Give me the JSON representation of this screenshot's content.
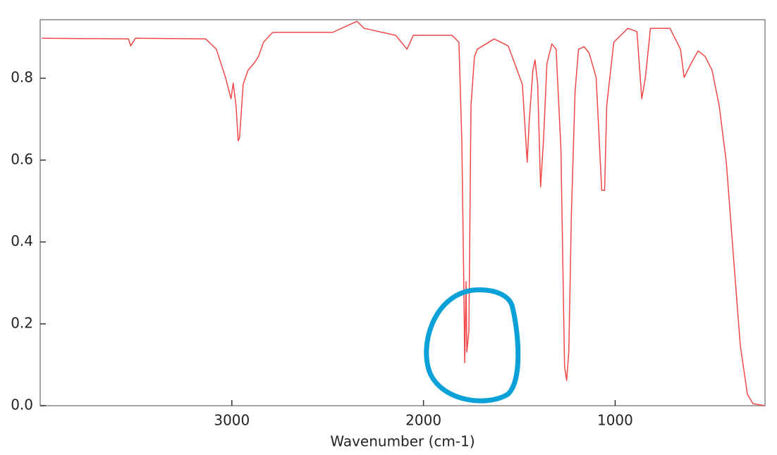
{
  "chart_data": {
    "type": "line",
    "xlabel": "Wavenumber (cm-1)",
    "x": [
      3991,
      3539,
      3528,
      3503,
      3136,
      3081,
      3033,
      3004,
      2993,
      2978,
      2967,
      2960,
      2941,
      2916,
      2879,
      2861,
      2835,
      2787,
      2475,
      2347,
      2310,
      2145,
      2086,
      2053,
      1851,
      1815,
      1800,
      1789,
      1785,
      1778,
      1774,
      1763,
      1752,
      1734,
      1719,
      1631,
      1558,
      1484,
      1459,
      1448,
      1429,
      1418,
      1404,
      1389,
      1374,
      1356,
      1330,
      1308,
      1283,
      1264,
      1253,
      1242,
      1228,
      1209,
      1191,
      1162,
      1136,
      1099,
      1070,
      1055,
      1044,
      1007,
      934,
      886,
      861,
      842,
      816,
      714,
      659,
      640,
      604,
      567,
      530,
      494,
      457,
      420,
      384,
      347,
      310,
      281,
      218
    ],
    "values": [
      0.898,
      0.896,
      0.879,
      0.898,
      0.896,
      0.871,
      0.802,
      0.75,
      0.788,
      0.733,
      0.647,
      0.655,
      0.785,
      0.819,
      0.84,
      0.853,
      0.888,
      0.912,
      0.912,
      0.939,
      0.922,
      0.905,
      0.871,
      0.905,
      0.905,
      0.888,
      0.647,
      0.268,
      0.105,
      0.303,
      0.131,
      0.182,
      0.733,
      0.853,
      0.871,
      0.896,
      0.879,
      0.785,
      0.595,
      0.698,
      0.819,
      0.845,
      0.785,
      0.535,
      0.647,
      0.836,
      0.884,
      0.871,
      0.63,
      0.096,
      0.062,
      0.131,
      0.475,
      0.767,
      0.871,
      0.877,
      0.862,
      0.802,
      0.526,
      0.526,
      0.733,
      0.888,
      0.922,
      0.914,
      0.75,
      0.802,
      0.922,
      0.922,
      0.871,
      0.802,
      0.836,
      0.867,
      0.853,
      0.819,
      0.733,
      0.595,
      0.372,
      0.148,
      0.028,
      0.005,
      0
    ],
    "color": "#f04848",
    "xlim": [
      4000,
      218
    ],
    "xticks": [
      3000,
      2000,
      1000
    ],
    "ylim": [
      0,
      0.943
    ],
    "yticks": [
      {
        "value": 0,
        "label": "0.0"
      },
      0.2,
      0.4,
      0.6,
      0.8
    ]
  }
}
